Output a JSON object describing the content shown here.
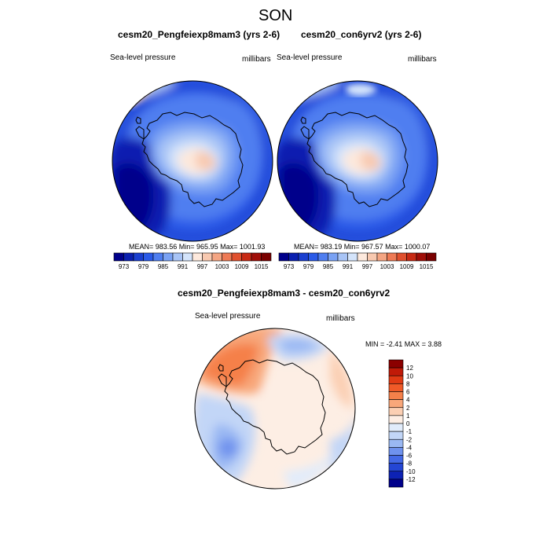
{
  "figure": {
    "title": "SON"
  },
  "panels": [
    {
      "title": "cesm20_Pengfeiexp8mam3 (yrs 2-6)",
      "left_label": "Sea-level pressure",
      "right_label": "millibars",
      "stats": "MEAN= 983.56  Min= 965.95  Max= 1001.93"
    },
    {
      "title": "cesm20_con6yrv2 (yrs 2-6)",
      "left_label": "Sea-level pressure",
      "right_label": "millibars",
      "stats": "MEAN= 983.19  Min= 967.57  Max= 1000.07"
    },
    {
      "title": "cesm20_Pengfeiexp8mam3 - cesm20_con6yrv2",
      "left_label": "Sea-level pressure",
      "right_label": "millibars",
      "stats": "MIN =  -2.41 MAX =   3.88"
    }
  ],
  "colorbar_horizontal": {
    "tick_labels": [
      "973",
      "979",
      "985",
      "991",
      "997",
      "1003",
      "1009",
      "1015"
    ],
    "colors": [
      "#00008b",
      "#0a1fb0",
      "#1a3fd0",
      "#2a5ae8",
      "#4f7ef0",
      "#7aa2f4",
      "#a8c4f6",
      "#d4e4fb",
      "#fde9dd",
      "#f8c9b0",
      "#f4a583",
      "#ee7a55",
      "#e0502e",
      "#c82a14",
      "#a00e08",
      "#7a0000"
    ]
  },
  "colorbar_vertical": {
    "tick_labels": [
      "12",
      "10",
      "8",
      "6",
      "4",
      "2",
      "1",
      "0",
      "-1",
      "-2",
      "-4",
      "-6",
      "-8",
      "-10",
      "-12"
    ],
    "colors": [
      "#8b0000",
      "#c01a08",
      "#e03a14",
      "#f05a28",
      "#f5804a",
      "#f8a77a",
      "#fbcfb3",
      "#fdeee4",
      "#e1ecfb",
      "#c2d6f7",
      "#9ab8f3",
      "#6f92ee",
      "#4469e6",
      "#2446d4",
      "#0d22b4",
      "#00008b"
    ]
  },
  "chart_data": [
    {
      "type": "map",
      "projection": "south-polar-stereographic",
      "title": "cesm20_Pengfeiexp8mam3 (yrs 2-6)",
      "variable": "Sea-level pressure",
      "units": "millibars",
      "mean": 983.56,
      "min": 965.95,
      "max": 1001.93,
      "contour_levels": [
        973,
        975,
        977,
        979,
        981,
        983,
        985,
        987,
        989,
        991,
        993,
        995,
        997,
        999,
        1001,
        1003,
        1005,
        1007,
        1009,
        1011,
        1013,
        1015
      ]
    },
    {
      "type": "map",
      "projection": "south-polar-stereographic",
      "title": "cesm20_con6yrv2 (yrs 2-6)",
      "variable": "Sea-level pressure",
      "units": "millibars",
      "mean": 983.19,
      "min": 967.57,
      "max": 1000.07,
      "contour_levels": [
        973,
        975,
        977,
        979,
        981,
        983,
        985,
        987,
        989,
        991,
        993,
        995,
        997,
        999,
        1001,
        1003,
        1005,
        1007,
        1009,
        1011,
        1013,
        1015
      ]
    },
    {
      "type": "map",
      "projection": "south-polar-stereographic",
      "title": "cesm20_Pengfeiexp8mam3 - cesm20_con6yrv2",
      "variable": "Sea-level pressure",
      "units": "millibars",
      "min": -2.41,
      "max": 3.88,
      "contour_levels": [
        -12,
        -10,
        -8,
        -6,
        -4,
        -2,
        -1,
        0,
        1,
        2,
        4,
        6,
        8,
        10,
        12
      ]
    }
  ]
}
